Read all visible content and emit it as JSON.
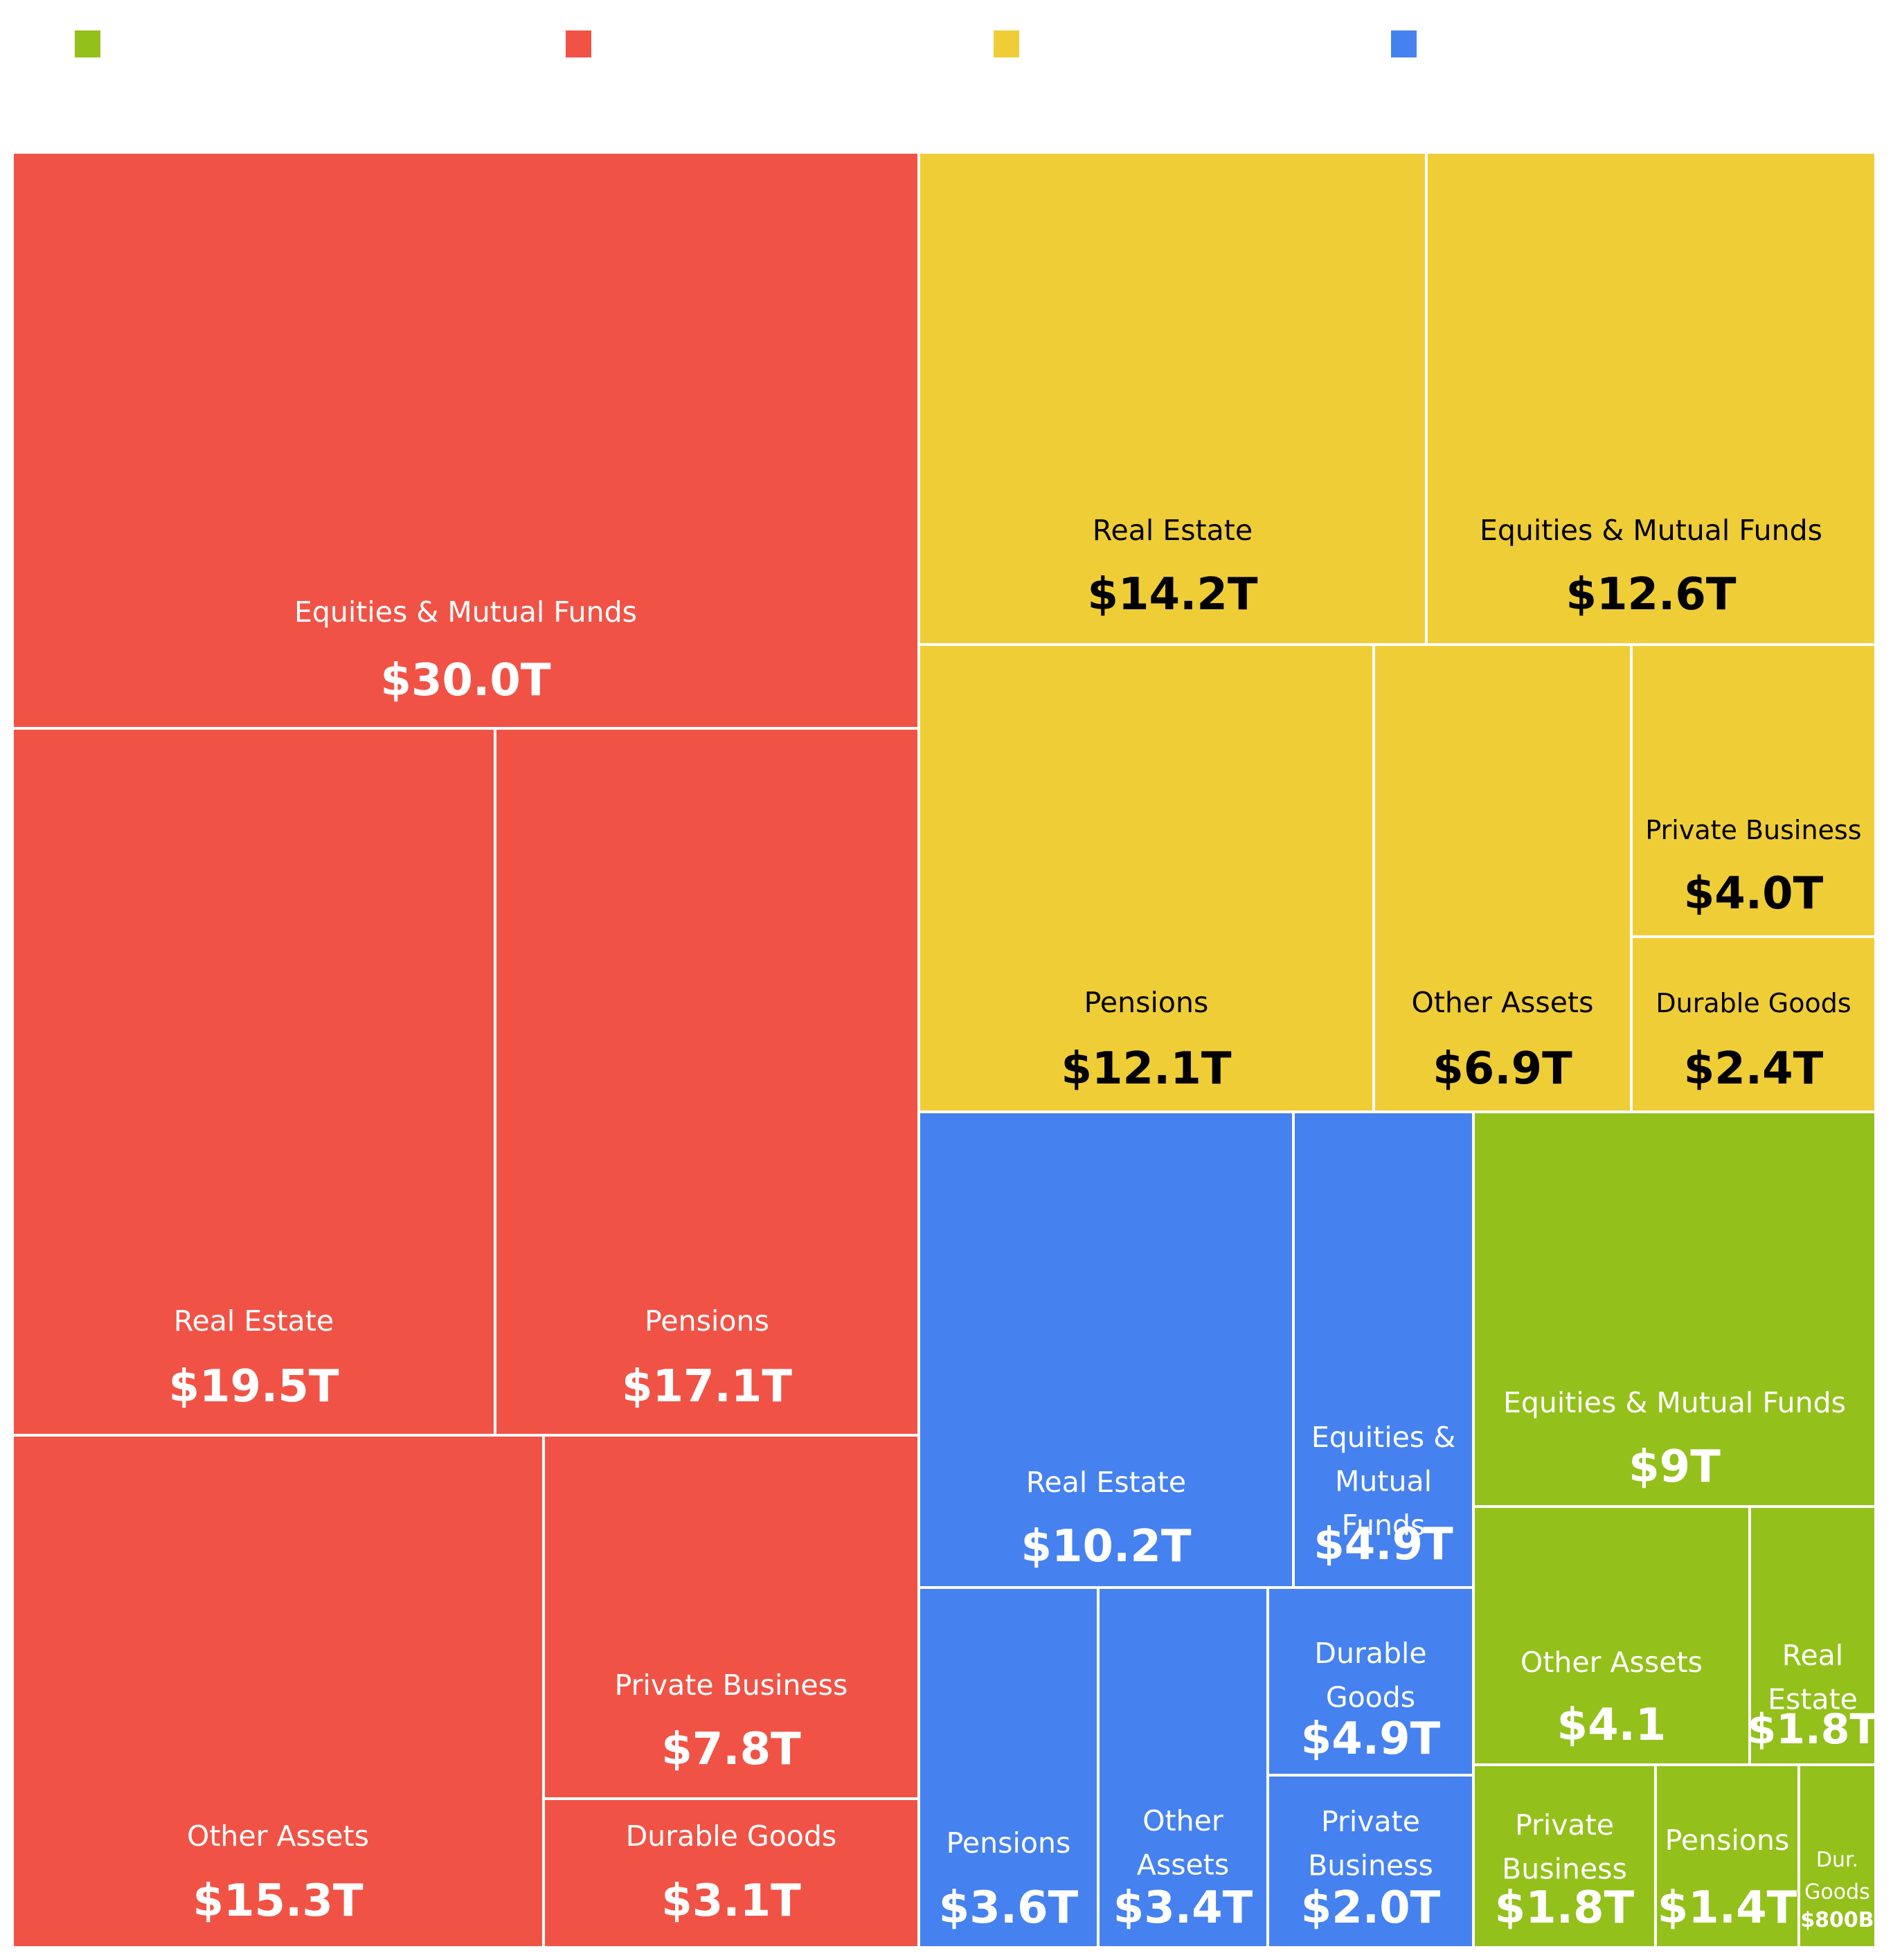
{
  "chart_data": {
    "type": "treemap",
    "legend": {
      "placement": "top",
      "swatches": [
        {
          "color": "#93c01a",
          "label": ""
        },
        {
          "color": "#f05346",
          "label": ""
        },
        {
          "color": "#efcd37",
          "label": ""
        },
        {
          "color": "#4581ef",
          "label": ""
        }
      ]
    },
    "groups": [
      {
        "color": "#f05346",
        "text_color": "#ffffff",
        "items": [
          {
            "label": "Equities & Mutual Funds",
            "value_text": "$30.0T",
            "value": 30.0
          },
          {
            "label": "Real Estate",
            "value_text": "$19.5T",
            "value": 19.5
          },
          {
            "label": "Pensions",
            "value_text": "$17.1T",
            "value": 17.1
          },
          {
            "label": "Other Assets",
            "value_text": "$15.3T",
            "value": 15.3
          },
          {
            "label": "Private Business",
            "value_text": "$7.8T",
            "value": 7.8
          },
          {
            "label": "Durable Goods",
            "value_text": "$3.1T",
            "value": 3.1
          }
        ]
      },
      {
        "color": "#efcd37",
        "text_color": "#000000",
        "items": [
          {
            "label": "Real Estate",
            "value_text": "$14.2T",
            "value": 14.2
          },
          {
            "label": "Equities & Mutual Funds",
            "value_text": "$12.6T",
            "value": 12.6
          },
          {
            "label": "Pensions",
            "value_text": "$12.1T",
            "value": 12.1
          },
          {
            "label": "Other Assets",
            "value_text": "$6.9T",
            "value": 6.9
          },
          {
            "label": "Private Business",
            "value_text": "$4.0T",
            "value": 4.0
          },
          {
            "label": "Durable Goods",
            "value_text": "$2.4T",
            "value": 2.4
          }
        ]
      },
      {
        "color": "#4581ef",
        "text_color": "#ffffff",
        "items": [
          {
            "label": "Real Estate",
            "value_text": "$10.2T",
            "value": 10.2
          },
          {
            "label": "Equities & Mutual Funds",
            "value_text": "$4.9T",
            "value": 4.9
          },
          {
            "label": "Pensions",
            "value_text": "$3.6T",
            "value": 3.6
          },
          {
            "label": "Other Assets",
            "value_text": "$3.4T",
            "value": 3.4
          },
          {
            "label": "Durable Goods",
            "value_text": "$4.9T",
            "value": 4.9
          },
          {
            "label": "Private Business",
            "value_text": "$2.0T",
            "value": 2.0
          }
        ]
      },
      {
        "color": "#93c01a",
        "text_color": "#ffffff",
        "items": [
          {
            "label": "Equities & Mutual Funds",
            "value_text": "$9T",
            "value": 9.0
          },
          {
            "label": "Other Assets",
            "value_text": "$4.1",
            "value": 4.1
          },
          {
            "label": "Real Estate",
            "value_text": "$1.8T",
            "value": 1.8
          },
          {
            "label": "Private Business",
            "value_text": "$1.8T",
            "value": 1.8
          },
          {
            "label": "Pensions",
            "value_text": "$1.4T",
            "value": 1.4
          },
          {
            "label": "Dur. Goods",
            "value_text": "$800B",
            "value": 0.8
          }
        ]
      }
    ]
  }
}
